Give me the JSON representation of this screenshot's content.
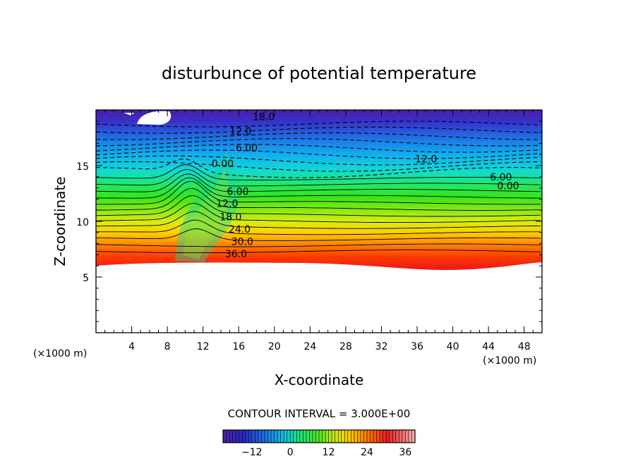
{
  "chart_data": {
    "type": "heatmap",
    "title": "disturbunce of potential temperature",
    "xlabel": "X-coordinate",
    "ylabel": "Z-coordinate",
    "x_unit_label": "(×1000 m)",
    "y_unit_label": "(×1000 m)",
    "xlim": [
      0,
      50
    ],
    "ylim": [
      0,
      20
    ],
    "x_ticks": [
      4,
      8,
      12,
      16,
      20,
      24,
      28,
      32,
      36,
      40,
      44,
      48
    ],
    "y_ticks": [
      5,
      10,
      15
    ],
    "contour_interval_label": "CONTOUR INTERVAL = 3.000E+00",
    "colorbar": {
      "min": -21,
      "max": 39,
      "step": 3,
      "tick_values": [
        -12,
        0,
        12,
        24,
        36
      ],
      "tick_labels": [
        "−12",
        "0",
        "12",
        "24",
        "36"
      ]
    },
    "contour_labels": [
      {
        "text": "18.0",
        "x": 18.8,
        "z": 19.4
      },
      {
        "text": "12.0",
        "x": 16.2,
        "z": 18.1
      },
      {
        "text": "6.00",
        "x": 16.9,
        "z": 16.6
      },
      {
        "text": "0.00",
        "x": 14.2,
        "z": 15.2
      },
      {
        "text": "6.00",
        "x": 15.9,
        "z": 12.7
      },
      {
        "text": "12.0",
        "x": 14.7,
        "z": 11.6
      },
      {
        "text": "18.0",
        "x": 15.1,
        "z": 10.4
      },
      {
        "text": "24.0",
        "x": 16.1,
        "z": 9.3
      },
      {
        "text": "30.0",
        "x": 16.4,
        "z": 8.2
      },
      {
        "text": "36.0",
        "x": 15.7,
        "z": 7.1
      },
      {
        "text": "12.0",
        "x": 37.0,
        "z": 15.6
      },
      {
        "text": "6.00",
        "x": 45.4,
        "z": 14.0
      },
      {
        "text": "0.00",
        "x": 46.2,
        "z": 13.2
      }
    ]
  }
}
